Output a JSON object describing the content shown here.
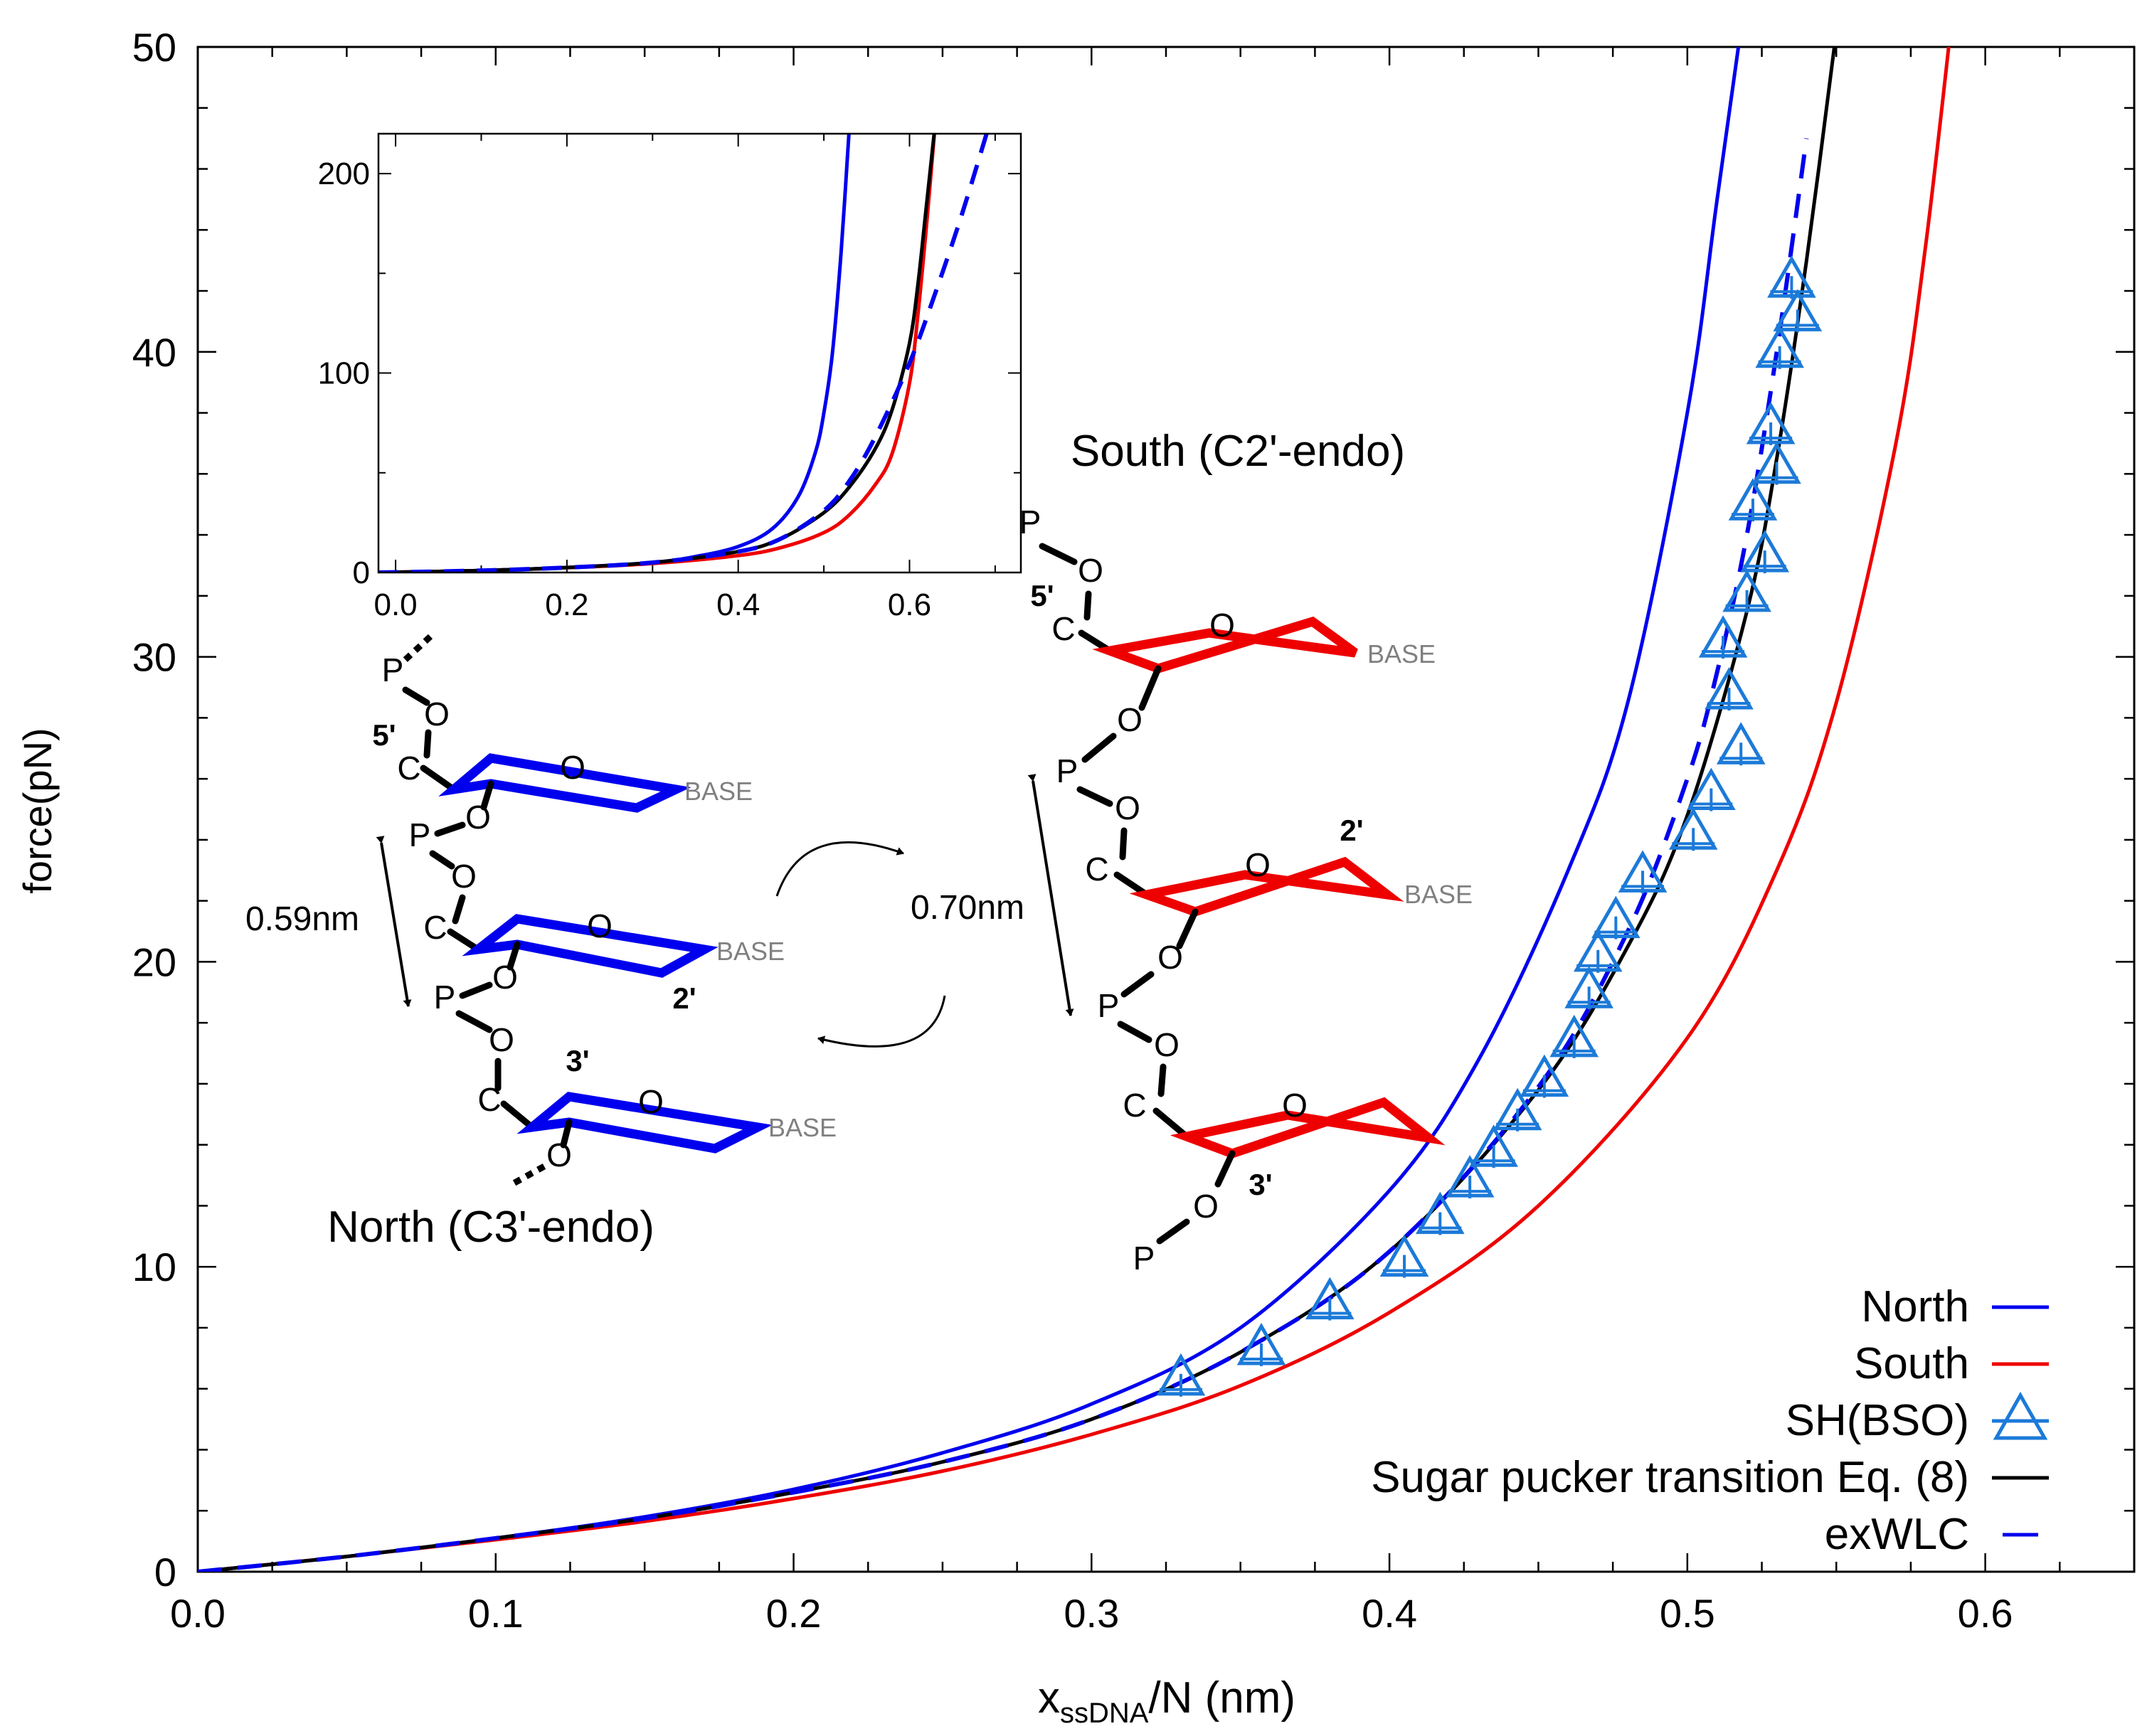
{
  "chart_data": [
    {
      "type": "line",
      "title": "",
      "xlabel_main": "x",
      "xlabel_sub": "ssDNA",
      "xlabel_rest": "/N (nm)",
      "ylabel": "force(pN)",
      "xlim": [
        0.0,
        0.65
      ],
      "ylim": [
        0,
        50
      ],
      "x_ticks": [
        0.0,
        0.1,
        0.2,
        0.3,
        0.4,
        0.5,
        0.6
      ],
      "x_tick_labels": [
        "0.0",
        "0.1",
        "0.2",
        "0.3",
        "0.4",
        "0.5",
        "0.6"
      ],
      "y_ticks": [
        0,
        10,
        20,
        30,
        40,
        50
      ],
      "y_tick_labels": [
        "0",
        "10",
        "20",
        "30",
        "40",
        "50"
      ],
      "grid": false,
      "legend_position": "bottom-right",
      "series": [
        {
          "name": "North",
          "color": "#0000ee",
          "style": "solid",
          "kind": "curve",
          "x": [
            0.0,
            0.05,
            0.1,
            0.15,
            0.2,
            0.25,
            0.3,
            0.35,
            0.4,
            0.43,
            0.46,
            0.48,
            0.5,
            0.51,
            0.52
          ],
          "y": [
            0,
            0.5,
            1.1,
            1.8,
            2.7,
            3.9,
            5.5,
            8.0,
            12.5,
            16.8,
            23.0,
            28.5,
            38.0,
            45.0,
            52.0
          ]
        },
        {
          "name": "South",
          "color": "#ee0000",
          "style": "solid",
          "kind": "curve",
          "x": [
            0.0,
            0.05,
            0.1,
            0.15,
            0.2,
            0.25,
            0.3,
            0.35,
            0.4,
            0.45,
            0.5,
            0.53,
            0.55,
            0.57,
            0.58,
            0.59
          ],
          "y": [
            0,
            0.5,
            1.05,
            1.65,
            2.4,
            3.3,
            4.5,
            6.1,
            8.5,
            12.0,
            17.5,
            23.0,
            28.5,
            37.0,
            43.5,
            52.0
          ]
        },
        {
          "name": "SH(BSO)",
          "color": "#1c7ad8",
          "style": "marker",
          "kind": "points",
          "x": [
            0.33,
            0.357,
            0.38,
            0.405,
            0.417,
            0.427,
            0.435,
            0.443,
            0.452,
            0.462,
            0.467,
            0.47,
            0.476,
            0.485,
            0.502,
            0.508,
            0.518,
            0.514,
            0.512,
            0.52,
            0.526,
            0.522,
            0.53,
            0.528,
            0.531,
            0.537,
            0.535
          ],
          "y": [
            6.3,
            7.3,
            8.8,
            10.2,
            11.6,
            12.8,
            13.8,
            15.0,
            16.1,
            17.4,
            19.0,
            20.2,
            21.3,
            22.8,
            24.2,
            25.5,
            27.0,
            28.8,
            30.5,
            32.0,
            33.3,
            35.0,
            36.2,
            37.5,
            40.0,
            41.2,
            42.3
          ]
        },
        {
          "name": "Sugar pucker transition Eq. (8)",
          "color": "#000000",
          "style": "solid",
          "kind": "curve",
          "x": [
            0.0,
            0.05,
            0.1,
            0.15,
            0.2,
            0.25,
            0.3,
            0.35,
            0.4,
            0.45,
            0.48,
            0.5,
            0.52,
            0.53,
            0.54,
            0.55
          ],
          "y": [
            0,
            0.5,
            1.1,
            1.75,
            2.6,
            3.6,
            5.0,
            7.2,
            10.5,
            15.8,
            20.5,
            24.8,
            31.5,
            36.5,
            43.0,
            50.5
          ]
        },
        {
          "name": "exWLC",
          "color": "#0000ee",
          "style": "dashed",
          "kind": "curve",
          "x": [
            0.0,
            0.05,
            0.1,
            0.15,
            0.2,
            0.25,
            0.3,
            0.35,
            0.4,
            0.45,
            0.48,
            0.5,
            0.51,
            0.52,
            0.53,
            0.54
          ],
          "y": [
            0,
            0.5,
            1.1,
            1.75,
            2.6,
            3.6,
            5.0,
            7.2,
            10.5,
            15.9,
            21.0,
            26.0,
            29.5,
            34.0,
            40.0,
            47.0
          ]
        }
      ]
    },
    {
      "type": "line",
      "title": "",
      "position": "inset upper-left",
      "xlim": [
        -0.02,
        0.73
      ],
      "ylim": [
        0,
        220
      ],
      "x_ticks": [
        0.0,
        0.2,
        0.4,
        0.6
      ],
      "x_tick_labels": [
        "0.0",
        "0.2",
        "0.4",
        "0.6"
      ],
      "y_ticks": [
        0,
        100,
        200
      ],
      "y_tick_labels": [
        "0",
        "100",
        "200"
      ],
      "series": [
        {
          "name": "North",
          "color": "#0000ee",
          "style": "solid",
          "x": [
            -0.02,
            0.1,
            0.2,
            0.3,
            0.35,
            0.4,
            0.44,
            0.47,
            0.49,
            0.5,
            0.51,
            0.52,
            0.53
          ],
          "y": [
            0,
            1,
            2.5,
            5,
            8,
            13,
            22,
            38,
            60,
            80,
            110,
            160,
            225
          ]
        },
        {
          "name": "South",
          "color": "#ee0000",
          "style": "solid",
          "x": [
            -0.02,
            0.1,
            0.2,
            0.3,
            0.4,
            0.45,
            0.5,
            0.53,
            0.56,
            0.58,
            0.6,
            0.61,
            0.62,
            0.63
          ],
          "y": [
            0,
            1,
            2.4,
            4.5,
            8.5,
            12.5,
            20,
            29,
            44,
            60,
            95,
            130,
            175,
            225
          ]
        },
        {
          "name": "Sugar pucker transition Eq. (8)",
          "color": "#000000",
          "style": "solid",
          "x": [
            -0.02,
            0.1,
            0.2,
            0.3,
            0.4,
            0.45,
            0.5,
            0.53,
            0.56,
            0.58,
            0.6,
            0.61,
            0.62,
            0.63
          ],
          "y": [
            0,
            1,
            2.5,
            5,
            10.5,
            17,
            30,
            43,
            62,
            82,
            115,
            145,
            185,
            225
          ]
        },
        {
          "name": "exWLC",
          "color": "#0000ee",
          "style": "dashed",
          "x": [
            -0.02,
            0.1,
            0.2,
            0.3,
            0.4,
            0.45,
            0.5,
            0.53,
            0.56,
            0.6,
            0.63,
            0.66,
            0.69
          ],
          "y": [
            0,
            1,
            2.5,
            5,
            10.5,
            17,
            31,
            46,
            68,
            105,
            140,
            178,
            220
          ]
        }
      ]
    }
  ],
  "annotations": {
    "north_label": "North (C3'-endo)",
    "south_label": "South (C2'-endo)",
    "north_spacing": "0.59nm",
    "south_spacing": "0.70nm",
    "atom_P": "P",
    "atom_O": "O",
    "atom_C": "C",
    "base": "BASE",
    "prime5": "5'",
    "prime3": "3'",
    "prime2": "2'"
  }
}
